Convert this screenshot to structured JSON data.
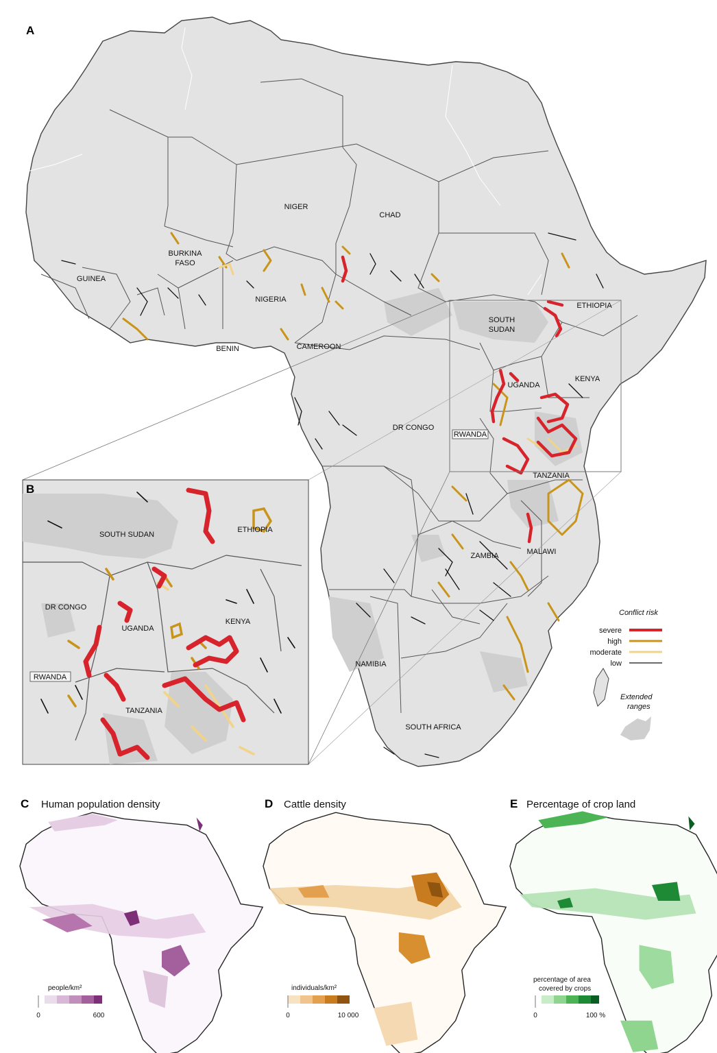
{
  "panels": {
    "a": {
      "letter": "A"
    },
    "b": {
      "letter": "B"
    },
    "c": {
      "letter": "C",
      "title": "Human population density",
      "unit": "people/km²",
      "min": "0",
      "max": "600",
      "ramp": [
        "#eadcea",
        "#d8b8d6",
        "#c08fbb",
        "#a3609c",
        "#7d2f78"
      ]
    },
    "d": {
      "letter": "D",
      "title": "Cattle density",
      "unit": "individuals/km²",
      "min": "0",
      "max": "10 000",
      "ramp": [
        "#f8e2c4",
        "#f0c48c",
        "#e3a150",
        "#c97c1f",
        "#8f5410"
      ]
    },
    "e": {
      "letter": "E",
      "title": "Percentage of crop land",
      "unit_line1": "percentage of area",
      "unit_line2": "covered by crops",
      "min": "0",
      "max": "100 %",
      "ramp": [
        "#c8ecc8",
        "#8fd58f",
        "#4cb454",
        "#1f8a36",
        "#0b5e22"
      ]
    }
  },
  "countries_main": {
    "niger": "NIGER",
    "chad": "CHAD",
    "burkina1": "BURKINA",
    "burkina2": "FASO",
    "guinea": "GUINEA",
    "nigeria": "NIGERIA",
    "benin": "BENIN",
    "cameroon": "CAMEROON",
    "ethiopia": "ETHIOPIA",
    "south_sudan1": "SOUTH",
    "south_sudan2": "SUDAN",
    "kenya": "KENYA",
    "uganda": "UGANDA",
    "dr_congo": "DR CONGO",
    "rwanda": "RWANDA",
    "tanzania": "TANZANIA",
    "zambia": "ZAMBIA",
    "malawi": "MALAWI",
    "namibia": "NAMIBIA",
    "south_africa": "SOUTH AFRICA"
  },
  "countries_inset": {
    "south_sudan": "SOUTH SUDAN",
    "ethiopia": "ETHIOPIA",
    "dr_congo": "DR CONGO",
    "uganda": "UGANDA",
    "kenya": "KENYA",
    "rwanda": "RWANDA",
    "tanzania": "TANZANIA"
  },
  "legend": {
    "title": "Conflict risk",
    "items": [
      {
        "label": "severe",
        "color": "#d7232b"
      },
      {
        "label": "high",
        "color": "#c8941a"
      },
      {
        "label": "moderate",
        "color": "#f1d48a"
      },
      {
        "label": "low",
        "color": "#111111"
      }
    ],
    "extended1": "Extended",
    "extended2": "ranges"
  },
  "colors": {
    "land": "#e3e3e3",
    "border": "#555555",
    "extended": "#cfcfcf"
  }
}
